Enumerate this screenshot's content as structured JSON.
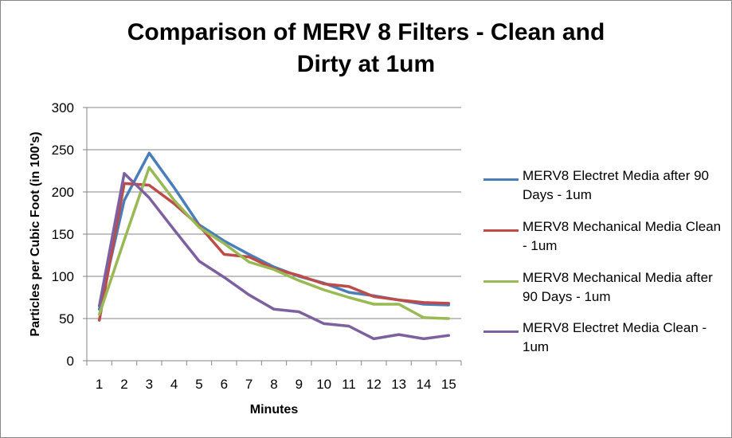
{
  "chart_data": {
    "type": "line",
    "title_lines": [
      "Comparison of MERV 8 Filters - Clean and",
      "Dirty at 1um"
    ],
    "xlabel": "Minutes",
    "ylabel": "Particles per Cubic Foot (in 100's)",
    "ylim": [
      0,
      300
    ],
    "yticks": [
      0,
      50,
      100,
      150,
      200,
      250,
      300
    ],
    "categories": [
      "1",
      "2",
      "3",
      "4",
      "5",
      "6",
      "7",
      "8",
      "9",
      "10",
      "11",
      "12",
      "13",
      "14",
      "15"
    ],
    "grid": true,
    "legend_position": "right",
    "series": [
      {
        "name": "MERV8 Electret Media after 90 Days - 1um",
        "color": "#4a7ebb",
        "values": [
          61,
          190,
          246,
          205,
          161,
          142,
          126,
          111,
          100,
          92,
          81,
          77,
          72,
          67,
          66
        ]
      },
      {
        "name": "MERV8 Mechanical Media Clean - 1um",
        "color": "#be4b48",
        "values": [
          48,
          210,
          208,
          186,
          160,
          126,
          123,
          109,
          101,
          91,
          88,
          76,
          72,
          69,
          68
        ]
      },
      {
        "name": "MERV8 Mechanical Media after 90 Days - 1um",
        "color": "#98b954",
        "values": [
          55,
          143,
          229,
          190,
          158,
          139,
          117,
          108,
          95,
          84,
          75,
          67,
          67,
          51,
          50
        ]
      },
      {
        "name": "MERV8 Electret Media Clean - 1um",
        "color": "#7d60a0",
        "values": [
          65,
          222,
          193,
          155,
          118,
          99,
          78,
          61,
          58,
          44,
          41,
          26,
          31,
          26,
          30
        ]
      }
    ]
  }
}
